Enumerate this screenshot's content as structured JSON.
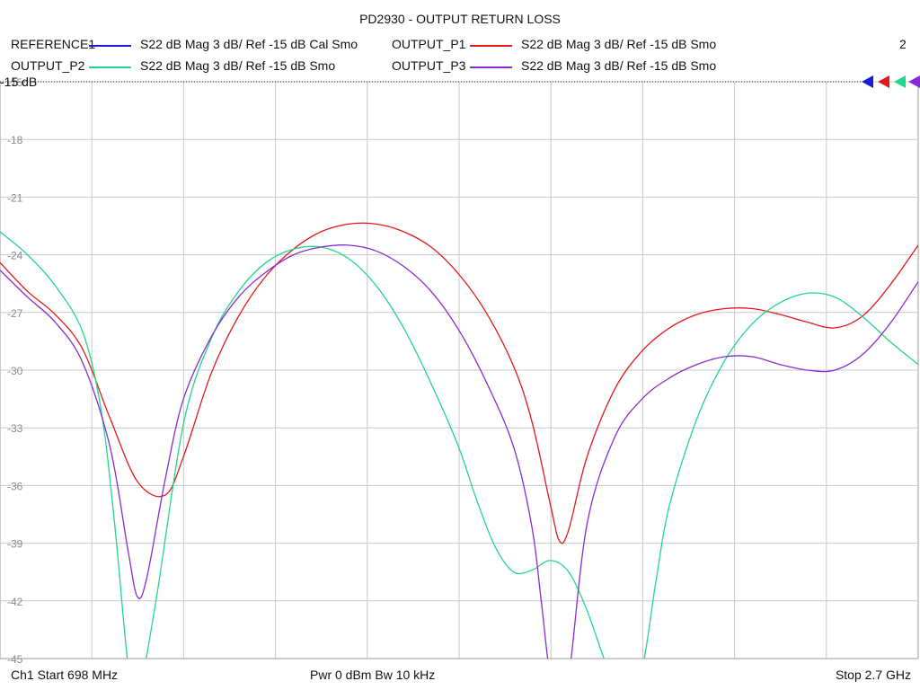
{
  "title": "PD2930 - OUTPUT RETURN LOSS",
  "legend": [
    {
      "name": "REFERENCE1",
      "color": "#1a1ad6",
      "desc": "S22  dB Mag  3 dB/ Ref -15 dB  Cal Smo"
    },
    {
      "name": "OUTPUT_P1",
      "color": "#e01a1a",
      "desc": "S22  dB Mag  3 dB/ Ref -15 dB  Smo"
    },
    {
      "name": "OUTPUT_P2",
      "color": "#22d68c",
      "desc": "S22  dB Mag  3 dB/ Ref -15 dB  Smo"
    },
    {
      "name": "OUTPUT_P3",
      "color": "#8a2ad6",
      "desc": "S22  dB Mag  3 dB/ Ref -15 dB  Smo"
    }
  ],
  "corner_number": "2",
  "ref_label": "-15 dB",
  "footer": {
    "left": "Ch1  Start  698 MHz",
    "center": "Pwr  0 dBm  Bw  10 kHz",
    "right": "Stop  2.7 GHz"
  },
  "chart_data": {
    "type": "line",
    "title": "PD2930 - OUTPUT RETURN LOSS",
    "x_start_mhz": 698,
    "x_stop_mhz": 2700,
    "ylim": [
      -45,
      -15
    ],
    "ytick_labels": [
      "-15",
      "-18",
      "-21",
      "-24",
      "-27",
      "-30",
      "-33",
      "-36",
      "-39",
      "-42",
      "-45"
    ],
    "yticks": [
      -15,
      -18,
      -21,
      -24,
      -27,
      -30,
      -33,
      -36,
      -39,
      -42,
      -45
    ],
    "grid": true,
    "series": [
      {
        "name": "OUTPUT_P1",
        "color": "#e01a1a",
        "x": [
          698,
          758,
          818,
          878,
          938,
          998,
          1058,
          1098,
          1158,
          1218,
          1278,
          1338,
          1398,
          1458,
          1518,
          1578,
          1638,
          1698,
          1758,
          1818,
          1858,
          1898,
          1918,
          1938,
          1978,
          2038,
          2098,
          2158,
          2218,
          2278,
          2338,
          2398,
          2458,
          2518,
          2578,
          2638,
          2700
        ],
        "y": [
          -24.4,
          -25.9,
          -27.1,
          -28.9,
          -32.5,
          -35.8,
          -36.5,
          -34.5,
          -30.2,
          -27.2,
          -25.1,
          -23.7,
          -22.8,
          -22.4,
          -22.4,
          -22.8,
          -23.6,
          -25.0,
          -27.0,
          -29.8,
          -32.7,
          -37.0,
          -38.9,
          -38.3,
          -34.5,
          -31.0,
          -29.0,
          -27.8,
          -27.1,
          -26.8,
          -26.8,
          -27.1,
          -27.5,
          -27.8,
          -27.2,
          -25.6,
          -23.5
        ]
      },
      {
        "name": "OUTPUT_P2",
        "color": "#22d68c",
        "x": [
          698,
          758,
          818,
          878,
          918,
          948,
          978,
          998,
          1038,
          1098,
          1158,
          1218,
          1278,
          1338,
          1398,
          1458,
          1518,
          1578,
          1638,
          1698,
          1738,
          1778,
          1818,
          1858,
          1898,
          1938,
          1978,
          2018,
          2058,
          2098,
          2128,
          2158,
          2218,
          2278,
          2338,
          2398,
          2458,
          2518,
          2578,
          2638,
          2700
        ],
        "y": [
          -22.8,
          -24.0,
          -25.6,
          -28.0,
          -32.0,
          -38.0,
          -45.5,
          -47.0,
          -42.0,
          -32.8,
          -28.4,
          -25.9,
          -24.4,
          -23.7,
          -23.6,
          -24.2,
          -25.6,
          -27.8,
          -30.7,
          -34.0,
          -36.8,
          -39.2,
          -40.5,
          -40.4,
          -39.9,
          -40.5,
          -42.5,
          -45.2,
          -47.5,
          -45.5,
          -41.0,
          -37.0,
          -32.5,
          -29.5,
          -27.6,
          -26.5,
          -26.0,
          -26.2,
          -27.2,
          -28.5,
          -29.7
        ]
      },
      {
        "name": "OUTPUT_P3",
        "color": "#8a2ad6",
        "x": [
          698,
          758,
          818,
          878,
          938,
          978,
          998,
          1018,
          1058,
          1098,
          1158,
          1218,
          1278,
          1338,
          1398,
          1458,
          1518,
          1578,
          1638,
          1698,
          1758,
          1818,
          1858,
          1878,
          1898,
          1918,
          1938,
          1978,
          2038,
          2098,
          2158,
          2218,
          2278,
          2338,
          2398,
          2458,
          2518,
          2578,
          2638,
          2700
        ],
        "y": [
          -24.8,
          -26.2,
          -27.5,
          -29.6,
          -34.0,
          -39.5,
          -41.8,
          -40.8,
          -35.7,
          -31.5,
          -28.3,
          -26.2,
          -24.9,
          -24.0,
          -23.6,
          -23.5,
          -23.8,
          -24.6,
          -25.9,
          -27.9,
          -30.6,
          -34.0,
          -38.2,
          -42.0,
          -46.0,
          -47.0,
          -46.0,
          -38.0,
          -33.5,
          -31.5,
          -30.4,
          -29.7,
          -29.3,
          -29.3,
          -29.7,
          -30.0,
          -30.0,
          -29.2,
          -27.6,
          -25.4
        ]
      }
    ]
  }
}
